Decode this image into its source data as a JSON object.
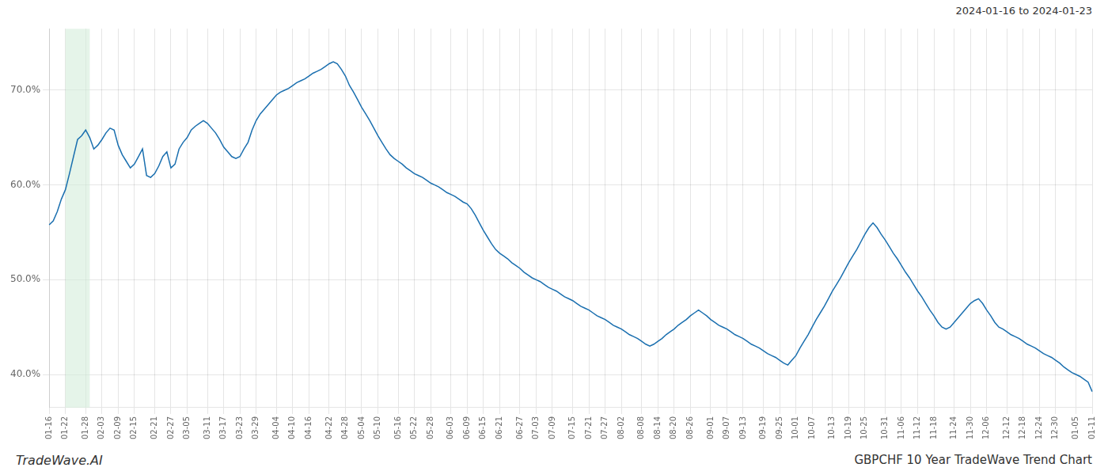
{
  "chart_data": {
    "type": "line",
    "title": "GBPCHF 10 Year TradeWave Trend Chart",
    "subtitle": "2024-01-16 to 2024-01-23",
    "annotations": [
      "TradeWave.AI"
    ],
    "color": "#1a6faf",
    "grid": true,
    "ylim": [
      0.365,
      0.765
    ],
    "yticks": [
      {
        "value": 0.4,
        "label": "40.0%"
      },
      {
        "value": 0.5,
        "label": "50.0%"
      },
      {
        "value": 0.6,
        "label": "60.0%"
      },
      {
        "value": 0.7,
        "label": "70.0%"
      }
    ],
    "highlight": {
      "x": [
        4,
        10
      ],
      "color": "#d4edda"
    },
    "categories": [
      "01-16",
      null,
      null,
      null,
      "01-22",
      null,
      null,
      null,
      null,
      "01-28",
      null,
      null,
      null,
      "02-03",
      null,
      null,
      null,
      "02-09",
      null,
      null,
      null,
      "02-15",
      null,
      null,
      null,
      null,
      "02-21",
      null,
      null,
      null,
      "02-27",
      null,
      null,
      null,
      "03-05",
      null,
      null,
      null,
      null,
      "03-11",
      null,
      null,
      null,
      "03-17",
      null,
      null,
      null,
      "03-23",
      null,
      null,
      null,
      "03-29",
      null,
      null,
      null,
      null,
      "04-04",
      null,
      null,
      null,
      "04-10",
      null,
      null,
      null,
      "04-16",
      null,
      null,
      null,
      null,
      "04-22",
      null,
      null,
      null,
      "04-28",
      null,
      null,
      null,
      "05-04",
      null,
      null,
      null,
      "05-10",
      null,
      null,
      null,
      null,
      "05-16",
      null,
      null,
      null,
      "05-22",
      null,
      null,
      null,
      "05-28",
      null,
      null,
      null,
      null,
      "06-03",
      null,
      null,
      null,
      "06-09",
      null,
      null,
      null,
      "06-15",
      null,
      null,
      null,
      "06-21",
      null,
      null,
      null,
      null,
      "06-27",
      null,
      null,
      null,
      "07-03",
      null,
      null,
      null,
      "07-09",
      null,
      null,
      null,
      null,
      "07-15",
      null,
      null,
      null,
      "07-21",
      null,
      null,
      null,
      "07-27",
      null,
      null,
      null,
      "08-02",
      null,
      null,
      null,
      null,
      "08-08",
      null,
      null,
      null,
      "08-14",
      null,
      null,
      null,
      "08-20",
      null,
      null,
      null,
      "08-26",
      null,
      null,
      null,
      null,
      "09-01",
      null,
      null,
      null,
      "09-07",
      null,
      null,
      null,
      "09-13",
      null,
      null,
      null,
      null,
      "09-19",
      null,
      null,
      null,
      "09-25",
      null,
      null,
      null,
      "10-01",
      null,
      null,
      null,
      "10-07",
      null,
      null,
      null,
      null,
      "10-13",
      null,
      null,
      null,
      "10-19",
      null,
      null,
      null,
      "10-25",
      null,
      null,
      null,
      null,
      "10-31",
      null,
      null,
      null,
      "11-06",
      null,
      null,
      null,
      "11-12",
      null,
      null,
      null,
      "11-18",
      null,
      null,
      null,
      null,
      "11-24",
      null,
      null,
      null,
      "11-30",
      null,
      null,
      null,
      "12-06",
      null,
      null,
      null,
      null,
      "12-12",
      null,
      null,
      null,
      "12-18",
      null,
      null,
      null,
      "12-24",
      null,
      null,
      null,
      "12-30",
      null,
      null,
      null,
      null,
      "01-05",
      null,
      null,
      null,
      "01-11"
    ],
    "values": [
      0.558,
      0.562,
      0.572,
      0.585,
      0.595,
      0.612,
      0.63,
      0.648,
      0.652,
      0.658,
      0.65,
      0.638,
      0.642,
      0.648,
      0.655,
      0.66,
      0.658,
      0.642,
      0.632,
      0.625,
      0.618,
      0.622,
      0.63,
      0.638,
      0.61,
      0.608,
      0.612,
      0.62,
      0.63,
      0.635,
      0.618,
      0.622,
      0.638,
      0.645,
      0.65,
      0.658,
      0.662,
      0.665,
      0.668,
      0.665,
      0.66,
      0.655,
      0.648,
      0.64,
      0.635,
      0.63,
      0.628,
      0.63,
      0.638,
      0.645,
      0.658,
      0.668,
      0.675,
      0.68,
      0.685,
      0.69,
      0.695,
      0.698,
      0.7,
      0.702,
      0.705,
      0.708,
      0.71,
      0.712,
      0.715,
      0.718,
      0.72,
      0.722,
      0.725,
      0.728,
      0.73,
      0.728,
      0.722,
      0.715,
      0.705,
      0.698,
      0.69,
      0.682,
      0.675,
      0.668,
      0.66,
      0.652,
      0.645,
      0.638,
      0.632,
      0.628,
      0.625,
      0.622,
      0.618,
      0.615,
      0.612,
      0.61,
      0.608,
      0.605,
      0.602,
      0.6,
      0.598,
      0.595,
      0.592,
      0.59,
      0.588,
      0.585,
      0.582,
      0.58,
      0.575,
      0.568,
      0.56,
      0.552,
      0.545,
      0.538,
      0.532,
      0.528,
      0.525,
      0.522,
      0.518,
      0.515,
      0.512,
      0.508,
      0.505,
      0.502,
      0.5,
      0.498,
      0.495,
      0.492,
      0.49,
      0.488,
      0.485,
      0.482,
      0.48,
      0.478,
      0.475,
      0.472,
      0.47,
      0.468,
      0.465,
      0.462,
      0.46,
      0.458,
      0.455,
      0.452,
      0.45,
      0.448,
      0.445,
      0.442,
      0.44,
      0.438,
      0.435,
      0.432,
      0.43,
      0.432,
      0.435,
      0.438,
      0.442,
      0.445,
      0.448,
      0.452,
      0.455,
      0.458,
      0.462,
      0.465,
      0.468,
      0.465,
      0.462,
      0.458,
      0.455,
      0.452,
      0.45,
      0.448,
      0.445,
      0.442,
      0.44,
      0.438,
      0.435,
      0.432,
      0.43,
      0.428,
      0.425,
      0.422,
      0.42,
      0.418,
      0.415,
      0.412,
      0.41,
      0.415,
      0.42,
      0.428,
      0.435,
      0.442,
      0.45,
      0.458,
      0.465,
      0.472,
      0.48,
      0.488,
      0.495,
      0.502,
      0.51,
      0.518,
      0.525,
      0.532,
      0.54,
      0.548,
      0.555,
      0.56,
      0.555,
      0.548,
      0.542,
      0.535,
      0.528,
      0.522,
      0.515,
      0.508,
      0.502,
      0.495,
      0.488,
      0.482,
      0.475,
      0.468,
      0.462,
      0.455,
      0.45,
      0.448,
      0.45,
      0.455,
      0.46,
      0.465,
      0.47,
      0.475,
      0.478,
      0.48,
      0.475,
      0.468,
      0.462,
      0.455,
      0.45,
      0.448,
      0.445,
      0.442,
      0.44,
      0.438,
      0.435,
      0.432,
      0.43,
      0.428,
      0.425,
      0.422,
      0.42,
      0.418,
      0.415,
      0.412,
      0.408,
      0.405,
      0.402,
      0.4,
      0.398,
      0.395,
      0.392,
      0.382
    ]
  }
}
